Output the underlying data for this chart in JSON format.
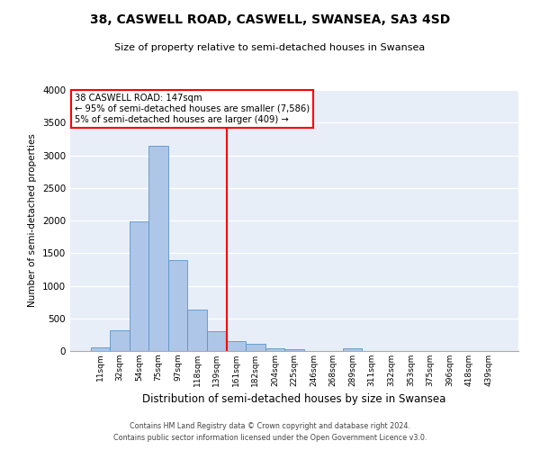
{
  "title": "38, CASWELL ROAD, CASWELL, SWANSEA, SA3 4SD",
  "subtitle": "Size of property relative to semi-detached houses in Swansea",
  "xlabel": "Distribution of semi-detached houses by size in Swansea",
  "ylabel": "Number of semi-detached properties",
  "bin_labels": [
    "11sqm",
    "32sqm",
    "54sqm",
    "75sqm",
    "97sqm",
    "118sqm",
    "139sqm",
    "161sqm",
    "182sqm",
    "204sqm",
    "225sqm",
    "246sqm",
    "268sqm",
    "289sqm",
    "311sqm",
    "332sqm",
    "353sqm",
    "375sqm",
    "396sqm",
    "418sqm",
    "439sqm"
  ],
  "bar_values": [
    50,
    320,
    1980,
    3150,
    1390,
    640,
    310,
    145,
    105,
    45,
    25,
    0,
    0,
    40,
    0,
    0,
    0,
    0,
    0,
    0,
    0
  ],
  "bar_color": "#aec6e8",
  "bar_edge_color": "#5a96c8",
  "vline_color": "red",
  "annotation_title": "38 CASWELL ROAD: 147sqm",
  "annotation_line1": "← 95% of semi-detached houses are smaller (7,586)",
  "annotation_line2": "5% of semi-detached houses are larger (409) →",
  "annotation_box_color": "white",
  "annotation_box_edge": "red",
  "ylim": [
    0,
    4000
  ],
  "yticks": [
    0,
    500,
    1000,
    1500,
    2000,
    2500,
    3000,
    3500,
    4000
  ],
  "background_color": "#e8eef8",
  "footer1": "Contains HM Land Registry data © Crown copyright and database right 2024.",
  "footer2": "Contains public sector information licensed under the Open Government Licence v3.0."
}
